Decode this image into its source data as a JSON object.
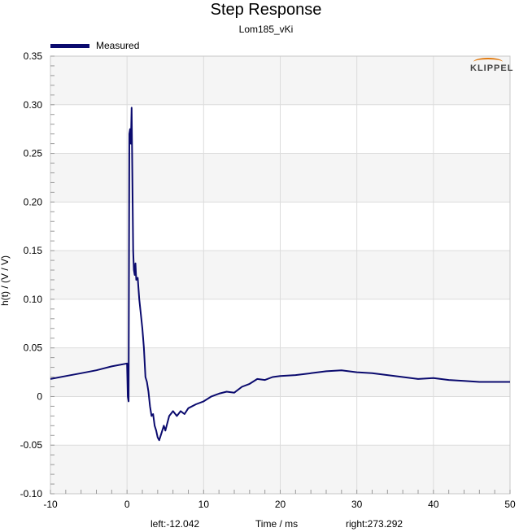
{
  "chart_data": {
    "type": "line",
    "title": "Step Response",
    "subtitle": "Lom185_vKi",
    "xlabel": "Time / ms",
    "ylabel": "h(t) / (V / V)",
    "xlim": [
      -10,
      50
    ],
    "ylim": [
      -0.1,
      0.35
    ],
    "xticks": [
      "-10",
      "0",
      "10",
      "20",
      "30",
      "40",
      "50"
    ],
    "yticks": [
      "0.35",
      "0.30",
      "0.25",
      "0.20",
      "0.15",
      "0.10",
      "0.05",
      "0",
      "-0.05",
      "-0.10"
    ],
    "grid": true,
    "legend_position": "top-left",
    "annotations": {
      "left": "left:-12.042",
      "right": "right:273.292",
      "logo": "KLIPPEL"
    },
    "series": [
      {
        "name": "Measured",
        "color": "#0a0a6e",
        "x": [
          -10,
          -8,
          -6,
          -4,
          -2,
          0,
          0.1,
          0.2,
          0.3,
          0.4,
          0.5,
          0.6,
          0.7,
          0.8,
          0.9,
          1.0,
          1.1,
          1.2,
          1.4,
          1.6,
          1.8,
          2.0,
          2.2,
          2.4,
          2.6,
          2.8,
          3.0,
          3.2,
          3.4,
          3.6,
          3.8,
          4.0,
          4.2,
          4.4,
          4.6,
          4.8,
          5.0,
          5.5,
          6.0,
          6.5,
          7.0,
          7.5,
          8.0,
          9.0,
          10.0,
          11.0,
          12.0,
          13.0,
          14.0,
          15.0,
          16.0,
          17.0,
          18.0,
          19.0,
          20.0,
          22.0,
          24.0,
          26.0,
          28.0,
          30.0,
          32.0,
          34.0,
          36.0,
          38.0,
          40.0,
          42.0,
          44.0,
          46.0,
          48.0,
          50.0
        ],
        "y": [
          0.018,
          0.021,
          0.024,
          0.027,
          0.031,
          0.034,
          0.0,
          -0.005,
          0.27,
          0.275,
          0.26,
          0.297,
          0.22,
          0.15,
          0.13,
          0.125,
          0.137,
          0.12,
          0.122,
          0.1,
          0.085,
          0.07,
          0.05,
          0.02,
          0.015,
          0.005,
          -0.01,
          -0.02,
          -0.018,
          -0.03,
          -0.035,
          -0.042,
          -0.045,
          -0.04,
          -0.035,
          -0.03,
          -0.035,
          -0.02,
          -0.015,
          -0.02,
          -0.015,
          -0.018,
          -0.012,
          -0.008,
          -0.005,
          0.0,
          0.003,
          0.005,
          0.004,
          0.01,
          0.013,
          0.018,
          0.017,
          0.02,
          0.021,
          0.022,
          0.024,
          0.026,
          0.027,
          0.025,
          0.024,
          0.022,
          0.02,
          0.018,
          0.019,
          0.017,
          0.016,
          0.015,
          0.015,
          0.015
        ]
      }
    ]
  }
}
